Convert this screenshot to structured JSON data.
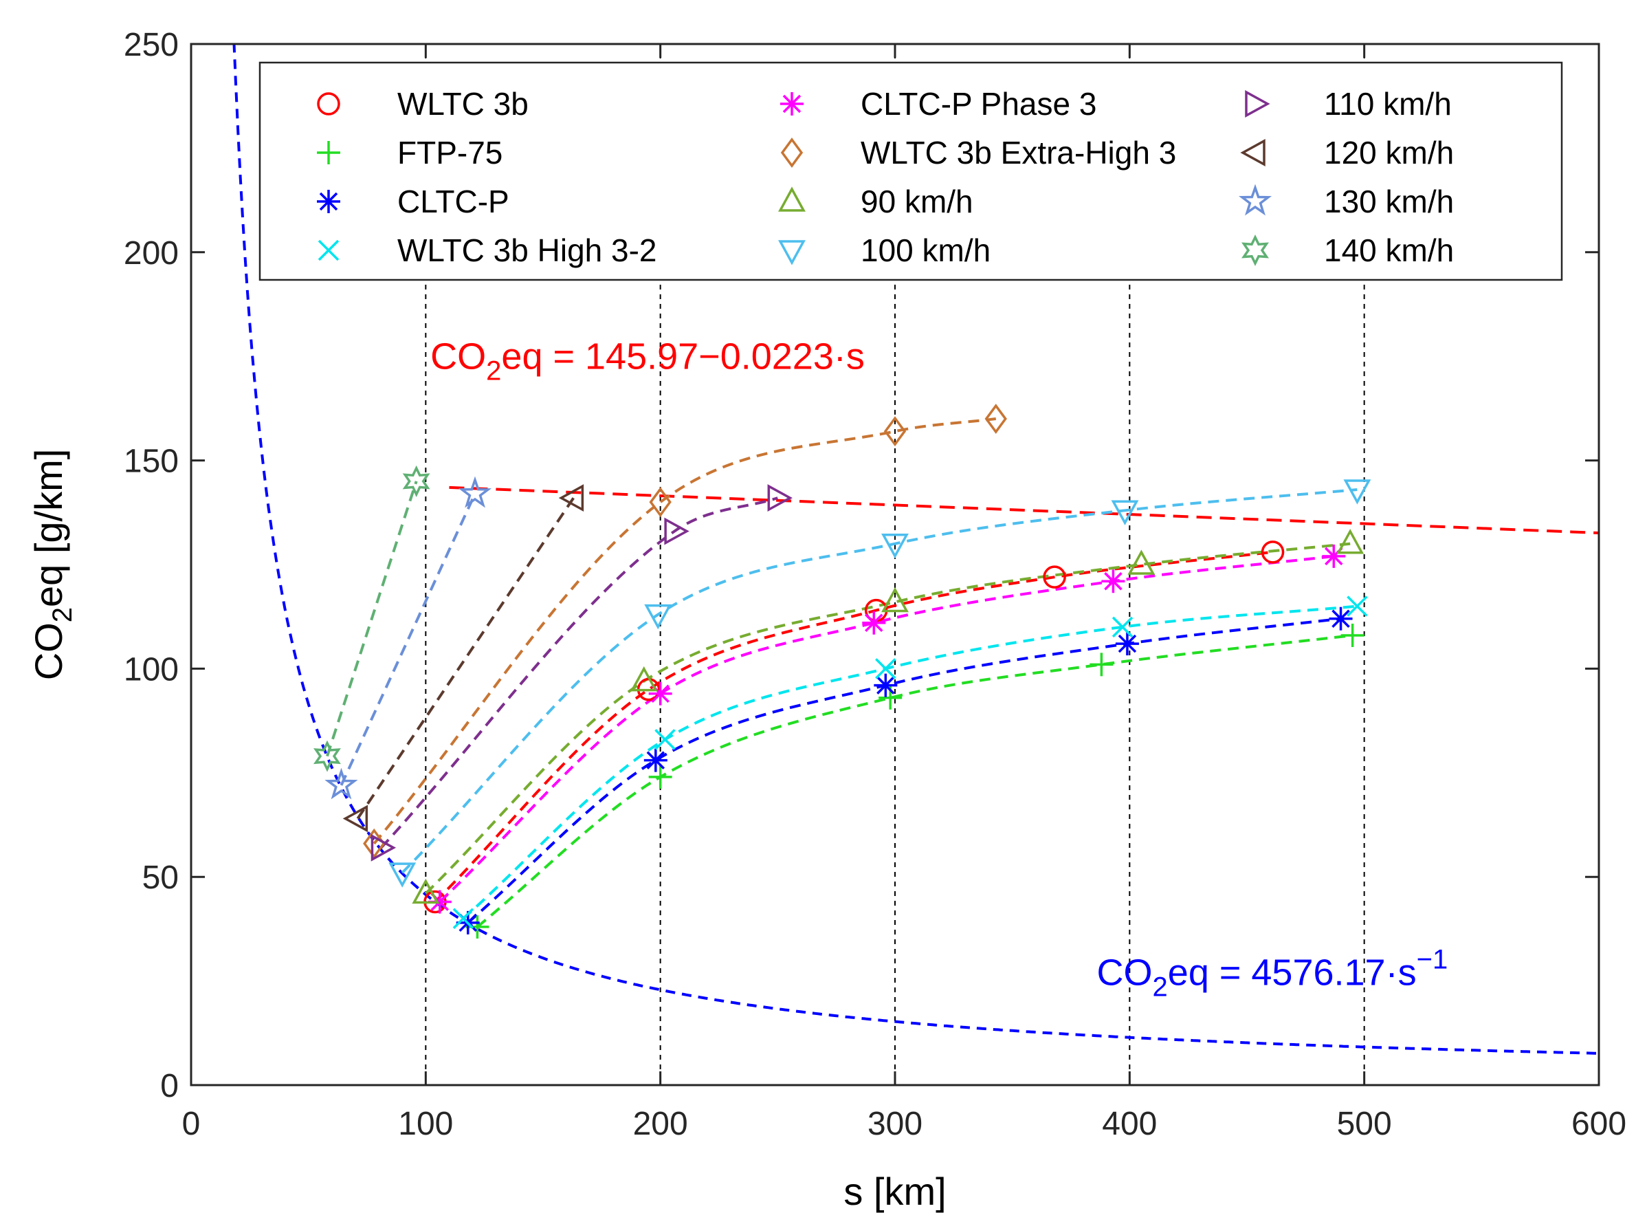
{
  "chart_data": {
    "type": "scatter",
    "title": "",
    "xlabel": "s [km]",
    "ylabel": {
      "main": "CO",
      "sub": "2",
      "rest": "eq [g/km]"
    },
    "xlim": [
      0,
      600
    ],
    "ylim": [
      0,
      250
    ],
    "x_ticks": [
      0,
      100,
      200,
      300,
      400,
      500,
      600
    ],
    "y_ticks": [
      0,
      50,
      100,
      150,
      200,
      250
    ],
    "vertical_reference_lines": [
      100,
      200,
      300,
      400,
      500
    ],
    "legend_position": "top",
    "hyperbola": {
      "coef": 4576.17,
      "color": "#0000ff",
      "x_range": [
        18,
        600
      ]
    },
    "linear_fit": {
      "intercept": 145.97,
      "slope": -0.0223,
      "color": "#ff0000",
      "x_range": [
        110,
        600
      ]
    },
    "annotations": [
      {
        "name": "linear-equation",
        "color": "#ff0000",
        "prefix": "CO",
        "sub": "2",
        "text": "eq = 145.97−0.0223·s",
        "x": 102,
        "y": 172
      },
      {
        "name": "hyperbola-equation",
        "color": "#0000ff",
        "prefix": "CO",
        "sub": "2",
        "text": "eq = 4576.17·s",
        "sup": "−1",
        "x": 386,
        "y": 24
      }
    ],
    "series": [
      {
        "name": "WLTC 3b",
        "marker": "circle",
        "color": "#ff0000",
        "curve_color": "#ff0000",
        "x": [
          104,
          195,
          292,
          368,
          461
        ],
        "y": [
          44,
          95,
          114,
          122,
          128
        ]
      },
      {
        "name": "FTP-75",
        "marker": "plus",
        "color": "#22dd22",
        "curve_color": "#22dd22",
        "x": [
          122,
          200,
          298,
          388,
          495
        ],
        "y": [
          38,
          74,
          93,
          101,
          108
        ]
      },
      {
        "name": "CLTC-P",
        "marker": "asterisk",
        "color": "#0000ff",
        "curve_color": "#0000ff",
        "x": [
          118,
          198,
          296,
          399,
          490
        ],
        "y": [
          39,
          78,
          96,
          106,
          112
        ]
      },
      {
        "name": "WLTC 3b High 3-2",
        "marker": "x",
        "color": "#00e5ee",
        "curve_color": "#00e5ee",
        "x": [
          116,
          202,
          296,
          397,
          497
        ],
        "y": [
          40,
          83,
          100,
          110,
          115
        ]
      },
      {
        "name": "CLTC-P Phase 3",
        "marker": "asterisk",
        "color": "#ff00ff",
        "curve_color": "#ff00ff",
        "x": [
          106,
          200,
          291,
          393,
          487
        ],
        "y": [
          44,
          94,
          111,
          121,
          127
        ]
      },
      {
        "name": "WLTC 3b Extra-High 3",
        "marker": "diamond",
        "color": "#c87533",
        "curve_color": "#c87533",
        "x": [
          78,
          200,
          300,
          343
        ],
        "y": [
          58,
          140,
          157,
          160
        ]
      },
      {
        "name": "90 km/h",
        "marker": "triangle-up",
        "color": "#77ac30",
        "curve_color": "#77ac30",
        "x": [
          100,
          193,
          300,
          405,
          494
        ],
        "y": [
          46,
          97,
          116,
          125,
          130
        ]
      },
      {
        "name": "100 km/h",
        "marker": "triangle-down",
        "color": "#4dbeee",
        "curve_color": "#4dbeee",
        "x": [
          90,
          199,
          300,
          398,
          497
        ],
        "y": [
          51,
          113,
          130,
          138,
          143
        ]
      },
      {
        "name": "110 km/h",
        "marker": "triangle-right",
        "color": "#7e2f8e",
        "curve_color": "#7e2f8e",
        "x": [
          81,
          206,
          250
        ],
        "y": [
          57,
          133,
          141
        ]
      },
      {
        "name": "120 km/h",
        "marker": "triangle-left",
        "color": "#5c3a2e",
        "curve_color": "#5c3a2e",
        "x": [
          71,
          163
        ],
        "y": [
          64,
          141
        ]
      },
      {
        "name": "130 km/h",
        "marker": "star5",
        "color": "#6b8fd8",
        "curve_color": "#6b8fd8",
        "x": [
          64,
          121
        ],
        "y": [
          72,
          142
        ]
      },
      {
        "name": "140 km/h",
        "marker": "star6",
        "color": "#5fb073",
        "curve_color": "#5fb073",
        "x": [
          58,
          96
        ],
        "y": [
          79,
          145
        ]
      }
    ]
  }
}
